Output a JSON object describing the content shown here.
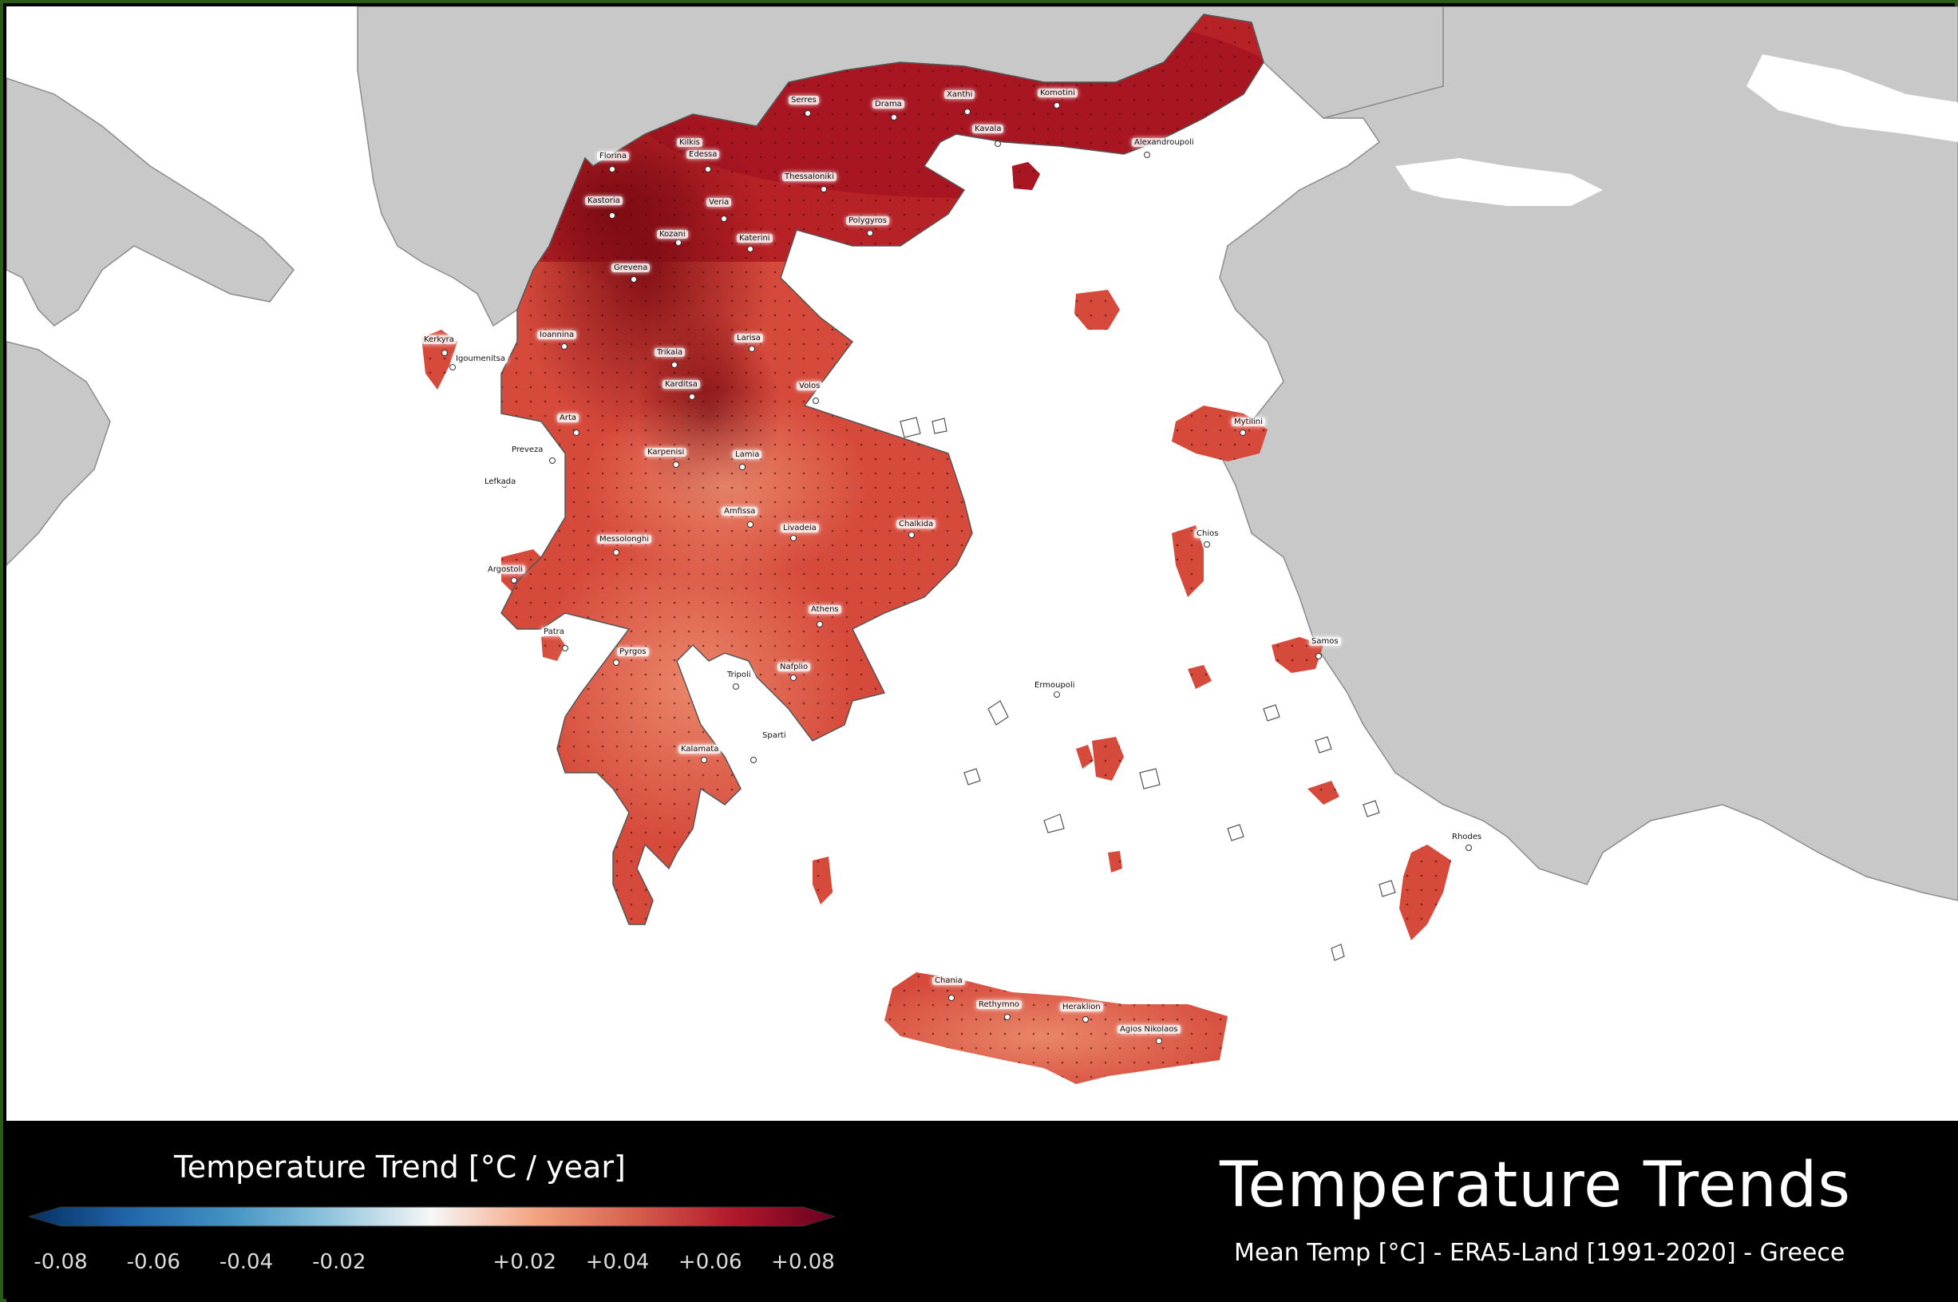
{
  "title": "Temperature Trends",
  "subtitle": "Mean Temp [°C] - ERA5-Land [1991-2020] - Greece",
  "legend": {
    "title": "Temperature Trend [°C / year]",
    "ticks": [
      "-0.08",
      "-0.06",
      "-0.04",
      "-0.02",
      "+0.02",
      "+0.04",
      "+0.06",
      "+0.08"
    ],
    "range": [
      -0.08,
      0.08
    ],
    "colors": [
      "#053061",
      "#2166ac",
      "#4393c3",
      "#92c5de",
      "#f7f7f7",
      "#f4a582",
      "#d6604d",
      "#b2182b",
      "#67001f"
    ]
  },
  "map": {
    "land_color": "#c8c8c8",
    "sea_color": "#ffffff",
    "cities": [
      "Serres",
      "Drama",
      "Xanthi",
      "Komotini",
      "Kilkis",
      "Kavala",
      "Alexandroupoli",
      "Florina",
      "Edessa",
      "Thessaloniki",
      "Kastoria",
      "Veria",
      "Kozani",
      "Katerini",
      "Polygyros",
      "Grevena",
      "Ioannina",
      "Larisa",
      "Trikala",
      "Kerkyra",
      "Igoumenitsa",
      "Karditsa",
      "Volos",
      "Arta",
      "Preveza",
      "Lefkada",
      "Karpenisi",
      "Lamia",
      "Mytilini",
      "Chalkida",
      "Amfissa",
      "Livadeia",
      "Messolonghi",
      "Argostoli",
      "Chios",
      "Athens",
      "Patra",
      "Pyrgos",
      "Ermoupoli",
      "Samos",
      "Tripoli",
      "Nafplio",
      "Kalamata",
      "Sparti",
      "Rhodes",
      "Chania",
      "Rethymno",
      "Heraklion",
      "Agios Nikolaos"
    ]
  }
}
